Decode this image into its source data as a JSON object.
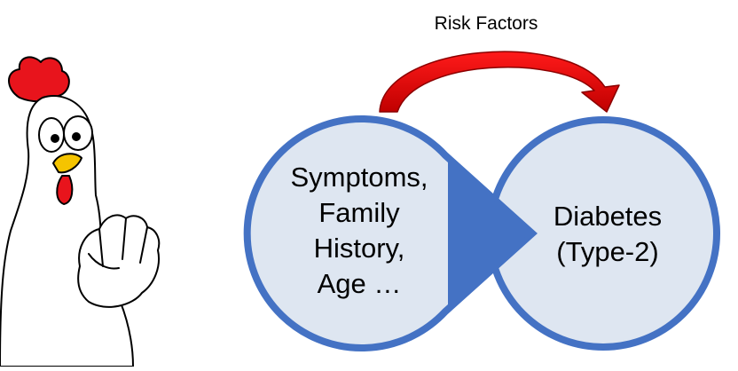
{
  "diagram": {
    "arrow_label": "Risk Factors",
    "left_node": {
      "lines": [
        "Symptoms,",
        "Family",
        "History,",
        "Age …"
      ]
    },
    "right_node": {
      "lines": [
        "Diabetes",
        "(Type-2)"
      ]
    }
  },
  "colors": {
    "circle_fill": "#dee6f1",
    "circle_stroke": "#4472c4",
    "arrow_fill": "#ff0000",
    "arrow_dark": "#b30000",
    "comb": "#e8141c",
    "beak": "#f5c400"
  },
  "icons": {
    "mascot": "chicken-pointing-icon"
  }
}
